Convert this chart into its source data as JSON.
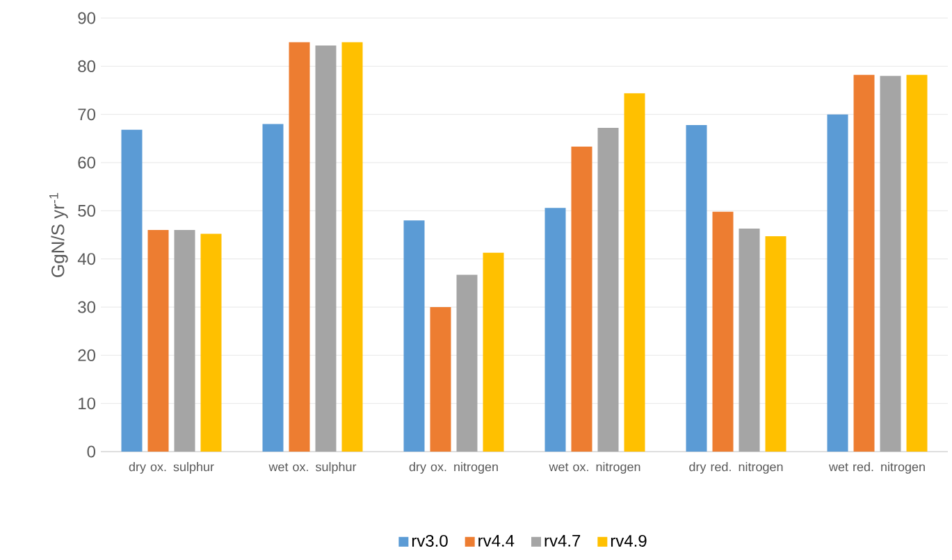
{
  "chart_data": {
    "type": "bar",
    "ylabel": "GgN/S yr$^{-1}$",
    "categories": [
      "dry ox. sulphur",
      "wet ox. sulphur",
      "dry ox. nitrogen",
      "wet ox. nitrogen",
      "dry red. nitrogen",
      "wet red. nitrogen"
    ],
    "series": [
      {
        "name": "rv3.0",
        "color": "#5b9bd5",
        "values": [
          66.8,
          68,
          48,
          50.6,
          67.8,
          70
        ]
      },
      {
        "name": "rv4.4",
        "color": "#ed7d31",
        "values": [
          46,
          85,
          30,
          63.3,
          49.8,
          78.2
        ]
      },
      {
        "name": "rv4.7",
        "color": "#a5a5a5",
        "values": [
          46,
          84.3,
          36.7,
          67.2,
          46.3,
          78
        ]
      },
      {
        "name": "rv4.9",
        "color": "#ffc000",
        "values": [
          45.2,
          85,
          41.3,
          74.4,
          44.7,
          78.2
        ]
      }
    ],
    "ylim": [
      0,
      90
    ],
    "yticks": [
      0,
      10,
      20,
      30,
      40,
      50,
      60,
      70,
      80,
      90
    ],
    "grid": "y",
    "legend": "bottom"
  }
}
